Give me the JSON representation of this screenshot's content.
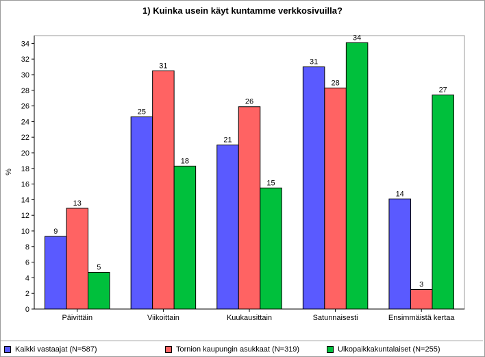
{
  "chart_data": {
    "type": "bar",
    "title": "1) Kuinka usein käyt kuntamme verkkosivuilla?",
    "xlabel": "",
    "ylabel": "%",
    "ylim": [
      0,
      35
    ],
    "yticks": [
      0,
      2,
      4,
      6,
      8,
      10,
      12,
      14,
      16,
      18,
      20,
      22,
      24,
      26,
      28,
      30,
      32,
      34
    ],
    "grid": false,
    "legend_position": "bottom",
    "categories": [
      "Päivittäin",
      "Viikoittain",
      "Kuukausittain",
      "Satunnaisesti",
      "Ensimmäistä kertaa"
    ],
    "series": [
      {
        "name": "Kaikki vastaajat (N=587)",
        "color": "#5a5aff",
        "values": [
          9.3,
          24.6,
          21.0,
          31.0,
          14.1
        ],
        "labels": [
          "9",
          "25",
          "21",
          "31",
          "14"
        ]
      },
      {
        "name": "Tornion kaupungin asukkaat (N=319)",
        "color": "#ff6363",
        "values": [
          12.9,
          30.5,
          25.9,
          28.3,
          2.5
        ],
        "labels": [
          "13",
          "31",
          "26",
          "28",
          "3"
        ]
      },
      {
        "name": "Ulkopaikkakuntalaiset (N=255)",
        "color": "#00c03c",
        "values": [
          4.7,
          18.3,
          15.5,
          34.1,
          27.4
        ],
        "labels": [
          "5",
          "18",
          "15",
          "34",
          "27"
        ]
      }
    ]
  }
}
